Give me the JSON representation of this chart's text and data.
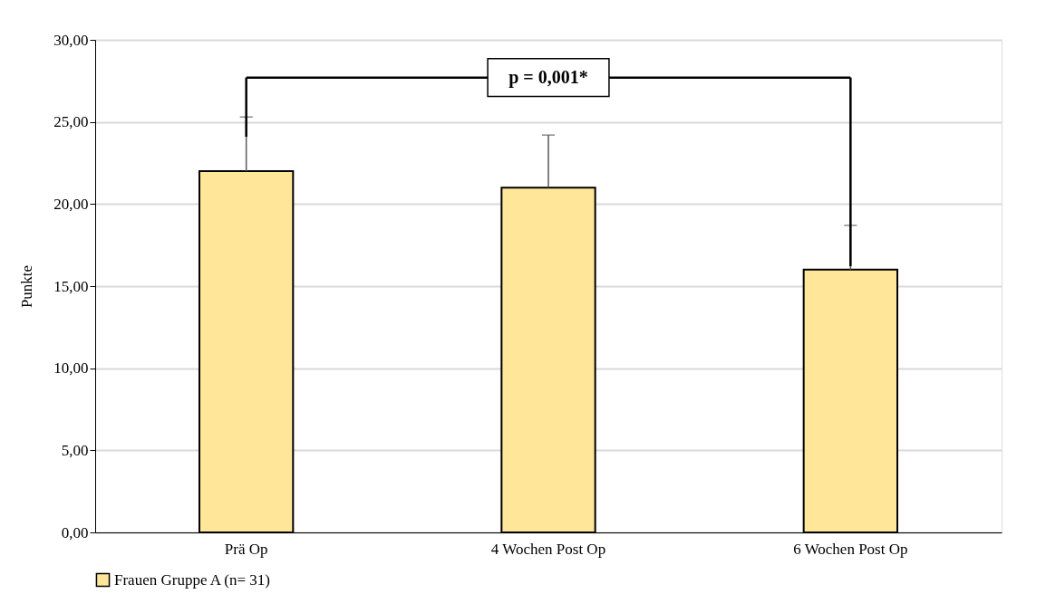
{
  "chart_data": {
    "type": "bar",
    "ylabel": "Punkte",
    "categories": [
      "Prä Op",
      "4 Wochen Post Op",
      "6 Wochen Post Op"
    ],
    "series": [
      {
        "name": "Frauen Gruppe A (n= 31)",
        "color": "#ffe699",
        "values": [
          22,
          21,
          16
        ],
        "errors": [
          [
            22,
            25.3
          ],
          [
            21,
            24.2
          ],
          [
            16,
            18.7
          ]
        ]
      }
    ],
    "ylim": [
      0,
      30
    ],
    "yticks": [
      {
        "value": 0,
        "label": "0,00"
      },
      {
        "value": 5,
        "label": "5,00"
      },
      {
        "value": 10,
        "label": "10,00"
      },
      {
        "value": 15,
        "label": "15,00"
      },
      {
        "value": 20,
        "label": "20,00"
      },
      {
        "value": 25,
        "label": "25,00"
      },
      {
        "value": 30,
        "label": "30,00"
      }
    ],
    "grid": "y",
    "legend": "bottom",
    "annotations": [
      "p = 0,001*"
    ]
  }
}
